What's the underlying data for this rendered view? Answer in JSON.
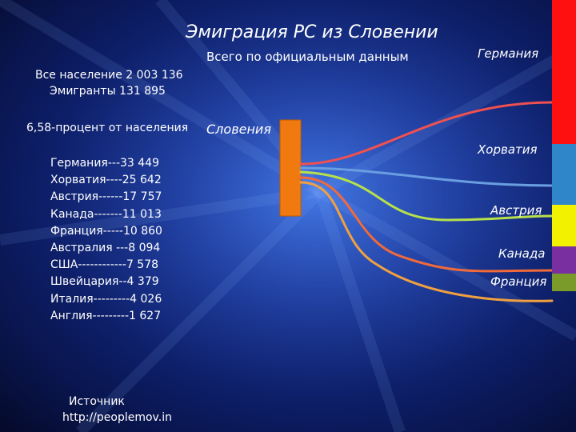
{
  "title": "Эмиграция РС из Словении",
  "subtitle": "Всего по официальным данным",
  "population_line": "Все население 2 003 136",
  "emigrants_line": "Эмигранты 131 895",
  "percent_line": "6,58-процент от населения",
  "origin_label": "Словения",
  "list": [
    "Германия---33 449",
    "Хорватия----25 642",
    "Австрия------17 757",
    "Канада-------11 013",
    "Франция-----10 860",
    "Австралия ---8 094",
    "США------------7 578",
    "Швейцария--4 379",
    "Италия---------4 026",
    "Англия---------1 627"
  ],
  "destinations": [
    {
      "label": "Германия",
      "color": "#ff1010",
      "flow_color": "#f05050"
    },
    {
      "label": "Хорватия",
      "color": "#2f86c8",
      "flow_color": "#6a9ee0"
    },
    {
      "label": "Австрия",
      "color": "#f2f200",
      "flow_color": "#b8e04a"
    },
    {
      "label": "Канада",
      "color": "#7a2fa0",
      "flow_color": "#f06a3a"
    },
    {
      "label": "Франция",
      "color": "#7a9a2a",
      "flow_color": "#f0a040"
    }
  ],
  "origin_color": "#f07a10",
  "source_label": "Источник",
  "source_url": "http://peoplemov.in"
}
